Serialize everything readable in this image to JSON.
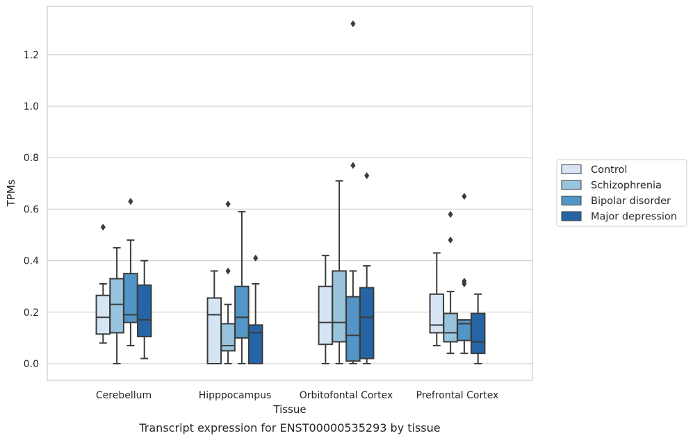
{
  "caption": "Transcript expression for ENST00000535293 by tissue",
  "chart_data": {
    "type": "box",
    "xlabel": "Tissue",
    "ylabel": "TPMs",
    "ylim": [
      -0.065,
      1.39
    ],
    "yticks": [
      0.0,
      0.2,
      0.4,
      0.6,
      0.8,
      1.0,
      1.2
    ],
    "ytick_labels": [
      "0.0",
      "0.2",
      "0.4",
      "0.6",
      "0.8",
      "1.0",
      "1.2"
    ],
    "grid": true,
    "legend_position": "right",
    "categories": [
      "Cerebellum",
      "Hipppocampus",
      "Orbitofontal Cortex",
      "Prefrontal Cortex"
    ],
    "series": [
      {
        "name": "Control",
        "color": "#d5e5f4",
        "boxes": [
          {
            "min": 0.08,
            "q1": 0.115,
            "median": 0.18,
            "q3": 0.265,
            "max": 0.31,
            "outliers": [
              0.53
            ]
          },
          {
            "min": 0.0,
            "q1": 0.0,
            "median": 0.19,
            "q3": 0.255,
            "max": 0.36,
            "outliers": []
          },
          {
            "min": 0.0,
            "q1": 0.075,
            "median": 0.16,
            "q3": 0.3,
            "max": 0.42,
            "outliers": []
          },
          {
            "min": 0.07,
            "q1": 0.12,
            "median": 0.15,
            "q3": 0.27,
            "max": 0.43,
            "outliers": []
          }
        ]
      },
      {
        "name": "Schizophrenia",
        "color": "#99c4dd",
        "boxes": [
          {
            "min": 0.0,
            "q1": 0.12,
            "median": 0.23,
            "q3": 0.33,
            "max": 0.45,
            "outliers": []
          },
          {
            "min": 0.0,
            "q1": 0.05,
            "median": 0.07,
            "q3": 0.155,
            "max": 0.23,
            "outliers": [
              0.36,
              0.62
            ]
          },
          {
            "min": 0.0,
            "q1": 0.085,
            "median": 0.16,
            "q3": 0.36,
            "max": 0.71,
            "outliers": []
          },
          {
            "min": 0.04,
            "q1": 0.085,
            "median": 0.12,
            "q3": 0.195,
            "max": 0.28,
            "outliers": [
              0.48,
              0.58
            ]
          }
        ]
      },
      {
        "name": "Bipolar disorder",
        "color": "#5295c6",
        "boxes": [
          {
            "min": 0.07,
            "q1": 0.16,
            "median": 0.19,
            "q3": 0.35,
            "max": 0.48,
            "outliers": [
              0.63
            ]
          },
          {
            "min": 0.0,
            "q1": 0.1,
            "median": 0.18,
            "q3": 0.3,
            "max": 0.59,
            "outliers": []
          },
          {
            "min": 0.0,
            "q1": 0.01,
            "median": 0.11,
            "q3": 0.26,
            "max": 0.36,
            "outliers": [
              0.77,
              1.32
            ]
          },
          {
            "min": 0.04,
            "q1": 0.09,
            "median": 0.155,
            "q3": 0.17,
            "max": 0.17,
            "outliers": [
              0.31,
              0.32,
              0.65
            ]
          }
        ]
      },
      {
        "name": "Major depression",
        "color": "#2565a6",
        "boxes": [
          {
            "min": 0.02,
            "q1": 0.105,
            "median": 0.17,
            "q3": 0.305,
            "max": 0.4,
            "outliers": []
          },
          {
            "min": 0.0,
            "q1": 0.0,
            "median": 0.12,
            "q3": 0.15,
            "max": 0.31,
            "outliers": [
              0.41
            ]
          },
          {
            "min": 0.0,
            "q1": 0.02,
            "median": 0.18,
            "q3": 0.295,
            "max": 0.38,
            "outliers": [
              0.73
            ]
          },
          {
            "min": 0.0,
            "q1": 0.04,
            "median": 0.085,
            "q3": 0.195,
            "max": 0.27,
            "outliers": []
          }
        ]
      }
    ]
  }
}
